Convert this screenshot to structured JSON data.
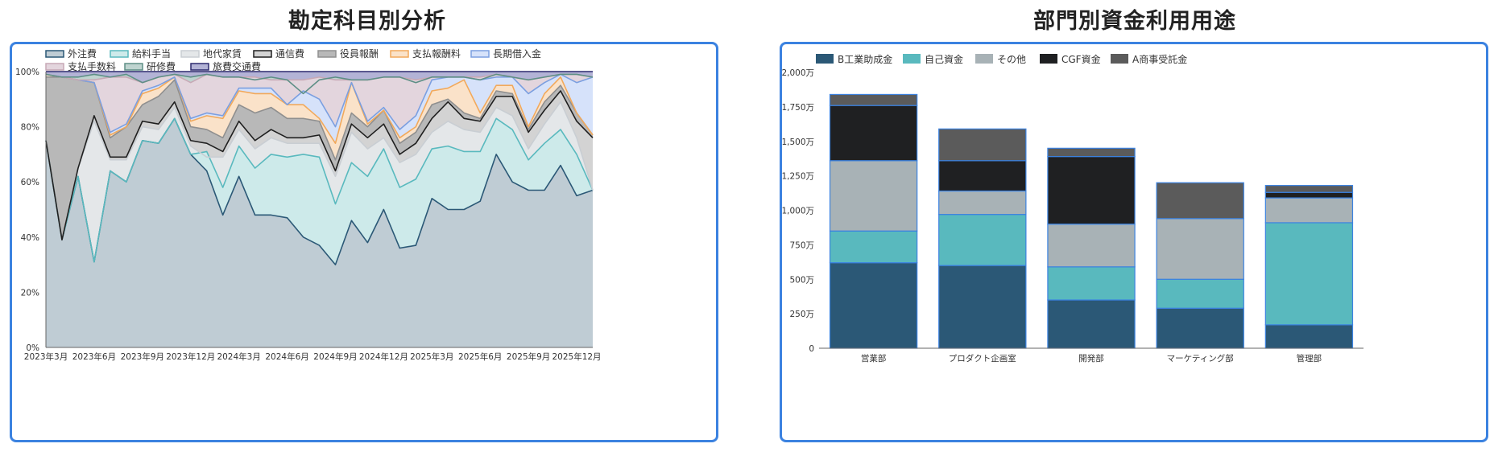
{
  "left": {
    "title": "勘定科目別分析"
  },
  "right": {
    "title": "部門別資金利用用途"
  },
  "chart_data": [
    {
      "type": "area",
      "stacked": true,
      "normalized": true,
      "title": "勘定科目別分析",
      "legend_position": "top-left",
      "ylim": [
        0,
        100
      ],
      "y_ticks": [
        "0%",
        "20%",
        "40%",
        "60%",
        "80%",
        "100%"
      ],
      "x_tick_labels": [
        "2023年3月",
        "2023年6月",
        "2023年9月",
        "2023年12月",
        "2024年3月",
        "2024年6月",
        "2024年9月",
        "2024年12月",
        "2025年3月",
        "2025年6月",
        "2025年9月",
        "2025年12月"
      ],
      "x": [
        "2023-03",
        "2023-04",
        "2023-05",
        "2023-06",
        "2023-07",
        "2023-08",
        "2023-09",
        "2023-10",
        "2023-11",
        "2023-12",
        "2024-01",
        "2024-02",
        "2024-03",
        "2024-04",
        "2024-05",
        "2024-06",
        "2024-07",
        "2024-08",
        "2024-09",
        "2024-10",
        "2024-11",
        "2024-12",
        "2025-01",
        "2025-02",
        "2025-03",
        "2025-04",
        "2025-05",
        "2025-06",
        "2025-07",
        "2025-08",
        "2025-09",
        "2025-10",
        "2025-11",
        "2025-12",
        "2026-01"
      ],
      "cumulative_percent": true,
      "series": [
        {
          "name": "外注費",
          "color": "#2b5876",
          "fill": "#bfccd4",
          "values": [
            75,
            39,
            62,
            31,
            64,
            60,
            75,
            74,
            83,
            70,
            64,
            48,
            62,
            48,
            48,
            47,
            40,
            37,
            30,
            46,
            38,
            50,
            36,
            37,
            54,
            50,
            50,
            53,
            70,
            60,
            57,
            57,
            66,
            55,
            57
          ]
        },
        {
          "name": "給料手当",
          "color": "#59b9be",
          "fill": "#cdeaea",
          "values": [
            75,
            39,
            62,
            31,
            64,
            60,
            75,
            74,
            83,
            70,
            71,
            58,
            73,
            65,
            70,
            69,
            70,
            69,
            52,
            67,
            62,
            72,
            58,
            61,
            72,
            73,
            71,
            71,
            83,
            79,
            68,
            74,
            79,
            70,
            57
          ]
        },
        {
          "name": "地代家賃",
          "color": "#c9ced3",
          "fill": "#e4e7e9",
          "values": [
            75,
            39,
            65,
            82,
            68,
            68,
            80,
            79,
            87,
            73,
            69,
            69,
            79,
            72,
            76,
            74,
            74,
            74,
            62,
            78,
            72,
            76,
            67,
            70,
            78,
            82,
            79,
            78,
            87,
            84,
            72,
            81,
            89,
            76,
            57
          ]
        },
        {
          "name": "通信費",
          "color": "#1f1f1f",
          "fill": "#d3d3d3",
          "values": [
            75,
            39,
            65,
            84,
            69,
            69,
            82,
            81,
            89,
            75,
            74,
            71,
            82,
            75,
            79,
            76,
            76,
            77,
            64,
            81,
            76,
            81,
            70,
            74,
            83,
            89,
            83,
            82,
            91,
            91,
            78,
            86,
            93,
            82,
            76
          ]
        },
        {
          "name": "役員報酬",
          "color": "#8f8f8f",
          "fill": "#b8b8b8",
          "values": [
            98,
            98,
            97,
            96,
            76,
            80,
            88,
            91,
            97,
            80,
            79,
            76,
            88,
            85,
            87,
            83,
            83,
            82,
            68,
            85,
            80,
            86,
            74,
            78,
            88,
            90,
            85,
            83,
            93,
            92,
            79,
            89,
            95,
            85,
            77
          ]
        },
        {
          "name": "支払報酬料",
          "color": "#f2a95b",
          "fill": "#fae2c9",
          "values": [
            99,
            98,
            97,
            96,
            77,
            80,
            92,
            94,
            98,
            82,
            84,
            83,
            93,
            92,
            92,
            88,
            88,
            83,
            74,
            96,
            81,
            86,
            76,
            80,
            93,
            94,
            97,
            85,
            95,
            95,
            80,
            92,
            98,
            85,
            77
          ]
        },
        {
          "name": "長期借入金",
          "color": "#7b9fe0",
          "fill": "#d6e2fa",
          "values": [
            99,
            98,
            97,
            96,
            78,
            81,
            93,
            95,
            98,
            83,
            85,
            84,
            94,
            94,
            94,
            88,
            93,
            90,
            80,
            96,
            82,
            87,
            79,
            84,
            97,
            98,
            98,
            97,
            98,
            98,
            92,
            96,
            99,
            96,
            98
          ]
        },
        {
          "name": "支払手数料",
          "color": "#c7a9b6",
          "fill": "#e3d5dd",
          "values": [
            99,
            98,
            97,
            97,
            98,
            98,
            96,
            98,
            99,
            96,
            99,
            98,
            98,
            98,
            97,
            97,
            97,
            98,
            97,
            97,
            97,
            98,
            98,
            97,
            98,
            98,
            98,
            98,
            99,
            98,
            97,
            98,
            99,
            99,
            98
          ]
        },
        {
          "name": "研修費",
          "color": "#5e8f86",
          "fill": "#bfd4d0",
          "values": [
            99,
            98,
            98,
            99,
            98,
            99,
            96,
            98,
            99,
            98,
            99,
            98,
            98,
            97,
            98,
            97,
            92,
            97,
            98,
            97,
            97,
            98,
            98,
            96,
            98,
            98,
            98,
            97,
            99,
            98,
            97,
            98,
            99,
            99,
            98
          ]
        },
        {
          "name": "旅費交通費",
          "color": "#2d2a6e",
          "fill": "#b3b3d6",
          "values": [
            100,
            100,
            100,
            100,
            100,
            100,
            100,
            100,
            100,
            100,
            100,
            100,
            100,
            100,
            100,
            100,
            100,
            100,
            100,
            100,
            100,
            100,
            100,
            100,
            100,
            100,
            100,
            100,
            100,
            100,
            100,
            100,
            100,
            100,
            100
          ]
        }
      ]
    },
    {
      "type": "bar",
      "stacked": true,
      "title": "部門別資金利用用途",
      "legend_position": "top-left",
      "categories": [
        "営業部",
        "プロダクト企画室",
        "開発部",
        "マーケティング部",
        "管理部"
      ],
      "ylim": [
        0,
        2000
      ],
      "y_ticks": [
        "0",
        "250万",
        "500万",
        "750万",
        "1,000万",
        "1,250万",
        "1,500万",
        "1,750万",
        "2,000万"
      ],
      "series": [
        {
          "name": "B工業助成金",
          "color": "#2b5876",
          "values": [
            620,
            600,
            350,
            290,
            170
          ]
        },
        {
          "name": "自己資金",
          "color": "#59b9be",
          "values": [
            230,
            370,
            240,
            210,
            740
          ]
        },
        {
          "name": "その他",
          "color": "#a8b2b6",
          "values": [
            510,
            170,
            310,
            440,
            180
          ]
        },
        {
          "name": "CGF資金",
          "color": "#1f2022",
          "values": [
            400,
            220,
            490,
            0,
            40
          ]
        },
        {
          "name": "A商事受託金",
          "color": "#5b5b5b",
          "values": [
            80,
            230,
            60,
            260,
            50
          ]
        }
      ]
    }
  ]
}
